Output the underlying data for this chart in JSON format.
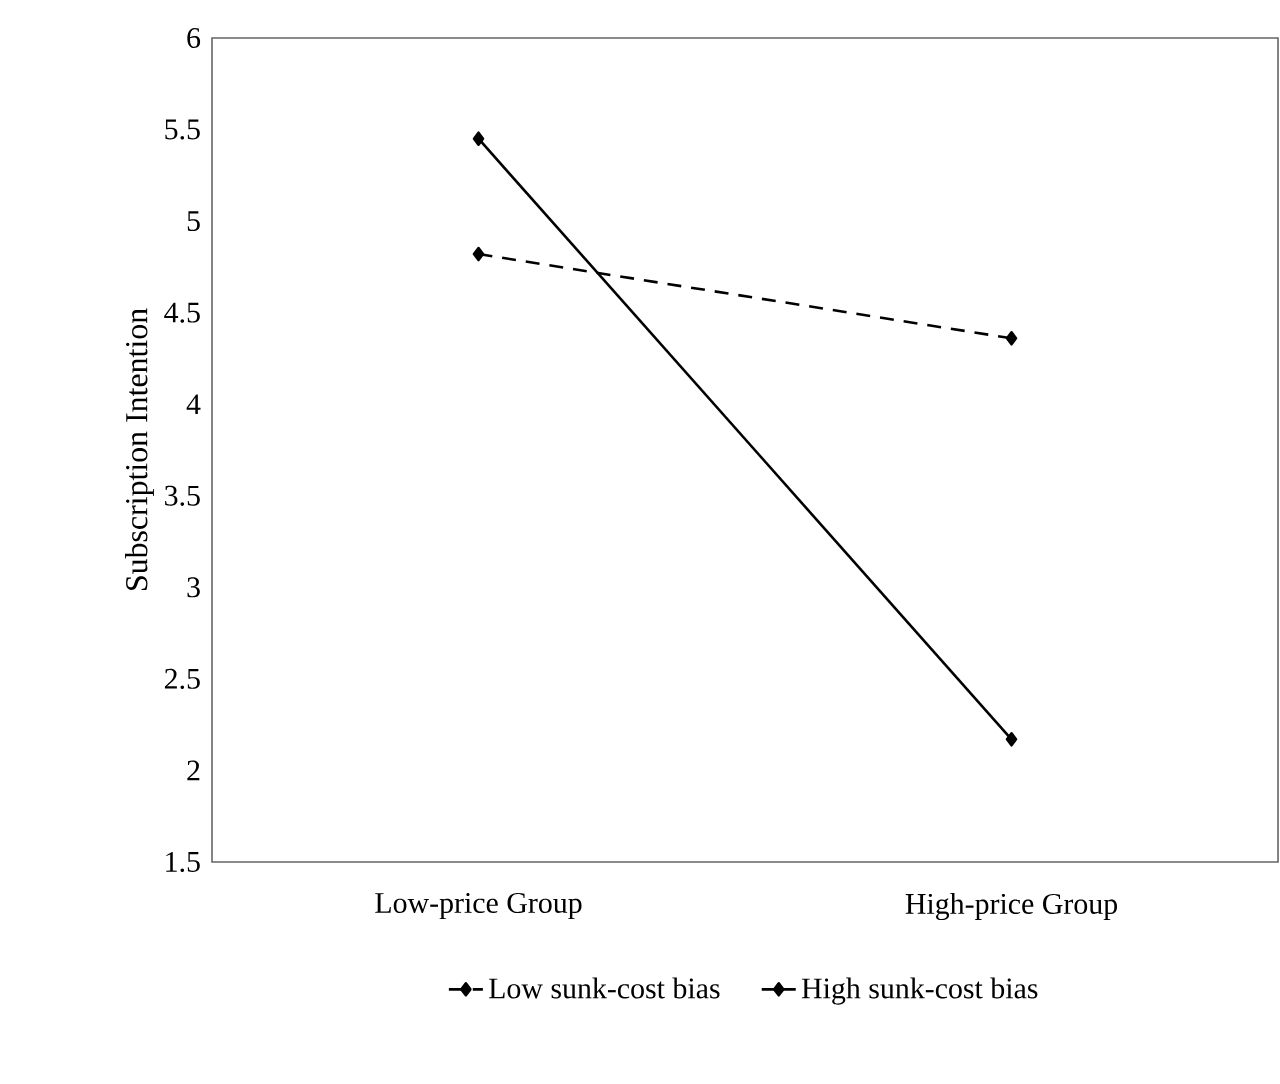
{
  "chart_data": {
    "type": "line",
    "ylabel": "Subscription Intention",
    "categories": [
      "Low-price Group",
      "High-price Group"
    ],
    "series": [
      {
        "name": "Low sunk-cost bias",
        "color": "#000000",
        "values": [
          4.82,
          4.36
        ],
        "line_style": "dashed"
      },
      {
        "name": "High sunk-cost bias",
        "color": "#000000",
        "values": [
          5.45,
          2.17
        ],
        "line_style": "solid"
      }
    ],
    "ylim": [
      1.5,
      6
    ],
    "yticks": [
      1.5,
      2,
      2.5,
      3,
      3.5,
      4,
      4.5,
      5,
      5.5,
      6
    ],
    "grid": false,
    "legend": "bottom",
    "marker": "diamond"
  }
}
